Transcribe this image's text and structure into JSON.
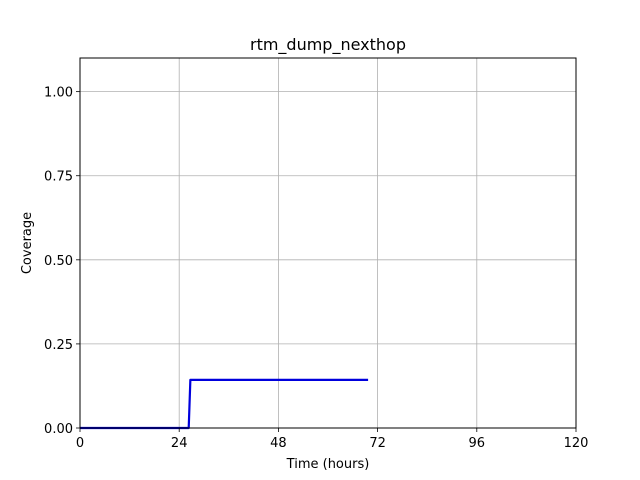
{
  "chart_data": {
    "type": "line",
    "title": "rtm_dump_nexthop",
    "xlabel": "Time (hours)",
    "ylabel": "Coverage",
    "xlim": [
      0,
      120
    ],
    "ylim": [
      0,
      1.1
    ],
    "x_ticks": [
      0,
      24,
      48,
      72,
      96,
      120
    ],
    "y_ticks": [
      0.0,
      0.25,
      0.5,
      0.75,
      1.0
    ],
    "x_tick_labels": [
      "0",
      "24",
      "48",
      "72",
      "96",
      "120"
    ],
    "y_tick_labels": [
      "0.00",
      "0.25",
      "0.50",
      "0.75",
      "1.00"
    ],
    "grid": true,
    "series": [
      {
        "color": "#0000dd",
        "x": [
          0,
          26.3,
          26.7,
          69.7
        ],
        "y": [
          0.0,
          0.0,
          0.143,
          0.143
        ]
      }
    ]
  }
}
